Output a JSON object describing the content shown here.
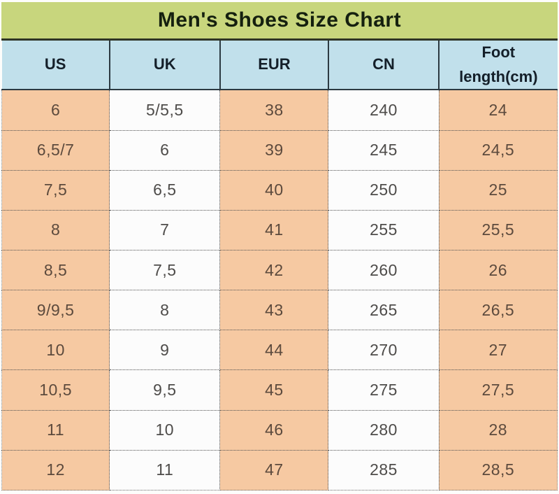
{
  "page": {
    "background": "#ffffff"
  },
  "title_bar": {
    "label": "Men's Shoes Size Chart",
    "background": "#c8d67d",
    "text_color": "#15200f"
  },
  "header": {
    "background": "#c1e0eb",
    "text_color": "#141f29"
  },
  "body_colors": {
    "peach_cell": "#f6c9a2",
    "white_cell": "#fcfcfc",
    "peach_text": "#5c4a3d",
    "white_text": "#4e4c4a",
    "grid_dotted": "#4f4f4f"
  },
  "chart_data": {
    "type": "table",
    "title": "Men's Shoes Size Chart",
    "columns": [
      "US",
      "UK",
      "EUR",
      "CN",
      "Foot length(cm)"
    ],
    "rows": [
      [
        "6",
        "5/5,5",
        "38",
        "240",
        "24"
      ],
      [
        "6,5/7",
        "6",
        "39",
        "245",
        "24,5"
      ],
      [
        "7,5",
        "6,5",
        "40",
        "250",
        "25"
      ],
      [
        "8",
        "7",
        "41",
        "255",
        "25,5"
      ],
      [
        "8,5",
        "7,5",
        "42",
        "260",
        "26"
      ],
      [
        "9/9,5",
        "8",
        "43",
        "265",
        "26,5"
      ],
      [
        "10",
        "9",
        "44",
        "270",
        "27"
      ],
      [
        "10,5",
        "9,5",
        "45",
        "275",
        "27,5"
      ],
      [
        "11",
        "10",
        "46",
        "280",
        "28"
      ],
      [
        "12",
        "11",
        "47",
        "285",
        "28,5"
      ]
    ]
  }
}
